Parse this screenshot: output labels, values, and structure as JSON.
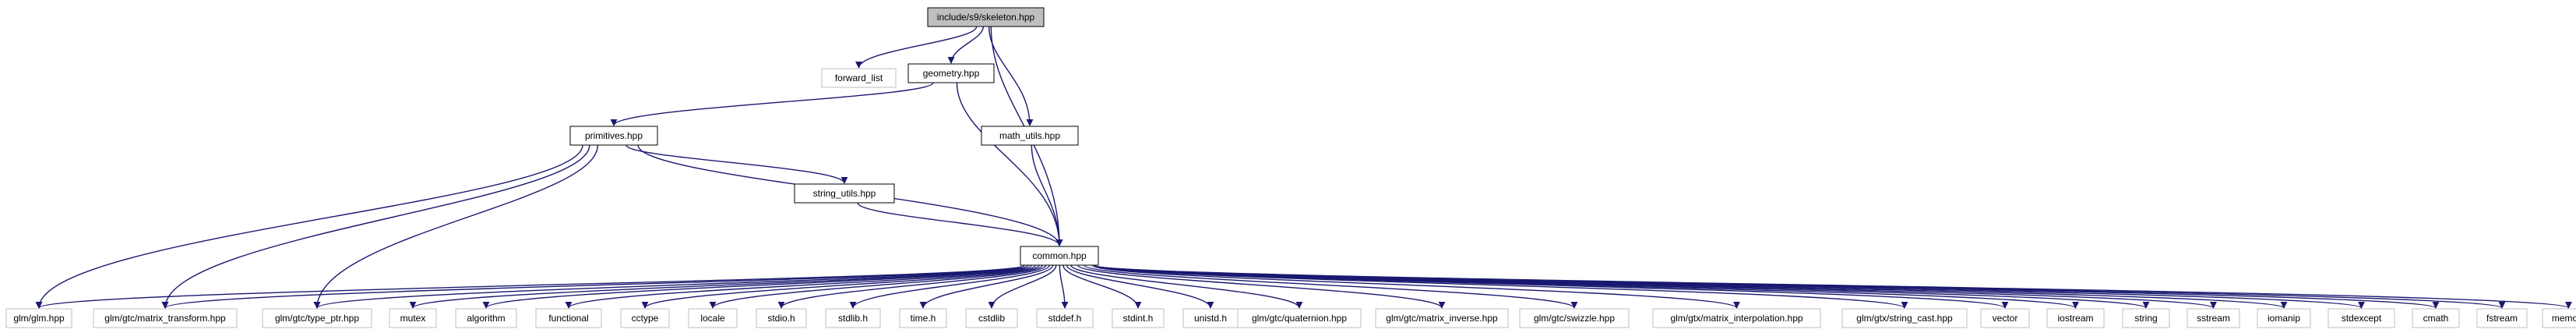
{
  "diagram": {
    "type": "include-dependency-graph",
    "root": "include/s9/skeleton.hpp",
    "colors": {
      "edge": "#191970",
      "root_fill": "#bfbfbf",
      "node_border": "#000000",
      "external_border": "#bfbfbf",
      "background": "#ffffff"
    },
    "nodes": [
      {
        "id": "skeleton",
        "label": "include/s9/skeleton.hpp",
        "kind": "root"
      },
      {
        "id": "forward_list",
        "label": "forward_list",
        "kind": "external"
      },
      {
        "id": "geometry",
        "label": "geometry.hpp",
        "kind": "local"
      },
      {
        "id": "math_utils",
        "label": "math_utils.hpp",
        "kind": "local"
      },
      {
        "id": "primitives",
        "label": "primitives.hpp",
        "kind": "local"
      },
      {
        "id": "string_utils",
        "label": "string_utils.hpp",
        "kind": "local"
      },
      {
        "id": "common",
        "label": "common.hpp",
        "kind": "local"
      },
      {
        "id": "glm_glm",
        "label": "glm/glm.hpp",
        "kind": "external"
      },
      {
        "id": "glm_mt",
        "label": "glm/gtc/matrix_transform.hpp",
        "kind": "external"
      },
      {
        "id": "glm_tp",
        "label": "glm/gtc/type_ptr.hpp",
        "kind": "external"
      },
      {
        "id": "mutex",
        "label": "mutex",
        "kind": "external"
      },
      {
        "id": "algorithm",
        "label": "algorithm",
        "kind": "external"
      },
      {
        "id": "functional",
        "label": "functional",
        "kind": "external"
      },
      {
        "id": "cctype",
        "label": "cctype",
        "kind": "external"
      },
      {
        "id": "locale",
        "label": "locale",
        "kind": "external"
      },
      {
        "id": "stdio",
        "label": "stdio.h",
        "kind": "external"
      },
      {
        "id": "stdlib",
        "label": "stdlib.h",
        "kind": "external"
      },
      {
        "id": "time",
        "label": "time.h",
        "kind": "external"
      },
      {
        "id": "cstdlib",
        "label": "cstdlib",
        "kind": "external"
      },
      {
        "id": "stddef",
        "label": "stddef.h",
        "kind": "external"
      },
      {
        "id": "stdint",
        "label": "stdint.h",
        "kind": "external"
      },
      {
        "id": "unistd",
        "label": "unistd.h",
        "kind": "external"
      },
      {
        "id": "glm_quat",
        "label": "glm/gtc/quaternion.hpp",
        "kind": "external"
      },
      {
        "id": "glm_mi",
        "label": "glm/gtc/matrix_inverse.hpp",
        "kind": "external"
      },
      {
        "id": "glm_sw",
        "label": "glm/gtc/swizzle.hpp",
        "kind": "external"
      },
      {
        "id": "glm_interp",
        "label": "glm/gtx/matrix_interpolation.hpp",
        "kind": "external"
      },
      {
        "id": "glm_sc",
        "label": "glm/gtx/string_cast.hpp",
        "kind": "external"
      },
      {
        "id": "vector",
        "label": "vector",
        "kind": "external"
      },
      {
        "id": "iostream",
        "label": "iostream",
        "kind": "external"
      },
      {
        "id": "string",
        "label": "string",
        "kind": "external"
      },
      {
        "id": "sstream",
        "label": "sstream",
        "kind": "external"
      },
      {
        "id": "iomanip",
        "label": "iomanip",
        "kind": "external"
      },
      {
        "id": "stdexcept",
        "label": "stdexcept",
        "kind": "external"
      },
      {
        "id": "cmath",
        "label": "cmath",
        "kind": "external"
      },
      {
        "id": "fstream",
        "label": "fstream",
        "kind": "external"
      },
      {
        "id": "memory",
        "label": "memory",
        "kind": "external"
      }
    ],
    "edges": [
      [
        "skeleton",
        "forward_list"
      ],
      [
        "skeleton",
        "geometry"
      ],
      [
        "skeleton",
        "math_utils"
      ],
      [
        "skeleton",
        "common"
      ],
      [
        "geometry",
        "primitives"
      ],
      [
        "geometry",
        "common"
      ],
      [
        "math_utils",
        "common"
      ],
      [
        "primitives",
        "string_utils"
      ],
      [
        "primitives",
        "common"
      ],
      [
        "primitives",
        "glm_glm"
      ],
      [
        "primitives",
        "glm_mt"
      ],
      [
        "primitives",
        "glm_tp"
      ],
      [
        "string_utils",
        "common"
      ],
      [
        "common",
        "glm_glm"
      ],
      [
        "common",
        "glm_mt"
      ],
      [
        "common",
        "glm_tp"
      ],
      [
        "common",
        "mutex"
      ],
      [
        "common",
        "algorithm"
      ],
      [
        "common",
        "functional"
      ],
      [
        "common",
        "cctype"
      ],
      [
        "common",
        "locale"
      ],
      [
        "common",
        "stdio"
      ],
      [
        "common",
        "stdlib"
      ],
      [
        "common",
        "time"
      ],
      [
        "common",
        "cstdlib"
      ],
      [
        "common",
        "stddef"
      ],
      [
        "common",
        "stdint"
      ],
      [
        "common",
        "unistd"
      ],
      [
        "common",
        "glm_quat"
      ],
      [
        "common",
        "glm_mi"
      ],
      [
        "common",
        "glm_sw"
      ],
      [
        "common",
        "glm_interp"
      ],
      [
        "common",
        "glm_sc"
      ],
      [
        "common",
        "vector"
      ],
      [
        "common",
        "iostream"
      ],
      [
        "common",
        "string"
      ],
      [
        "common",
        "sstream"
      ],
      [
        "common",
        "iomanip"
      ],
      [
        "common",
        "stdexcept"
      ],
      [
        "common",
        "cmath"
      ],
      [
        "common",
        "fstream"
      ],
      [
        "common",
        "memory"
      ]
    ]
  }
}
